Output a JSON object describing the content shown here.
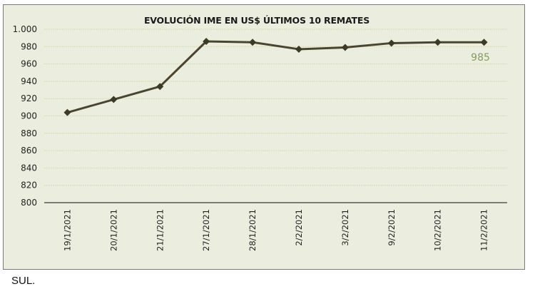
{
  "chart_data": {
    "type": "line",
    "title": "EVOLUCIÓN IME EN US$ ÚLTIMOS 10 REMATES",
    "xlabel": "",
    "ylabel": "",
    "categories": [
      "19/1/2021",
      "20/1/2021",
      "21/1/2021",
      "27/1/2021",
      "28/1/2021",
      "2/2/2021",
      "3/2/2021",
      "9/2/2021",
      "10/2/2021",
      "11/2/2021"
    ],
    "series": [
      {
        "name": "IME US$",
        "values": [
          904,
          919,
          934,
          986,
          985,
          977,
          979,
          984,
          985,
          985
        ]
      }
    ],
    "ylim": [
      800,
      1000
    ],
    "yticks": [
      800,
      820,
      840,
      860,
      880,
      900,
      920,
      940,
      960,
      980,
      1000
    ],
    "ytick_labels": [
      "800",
      "820",
      "840",
      "860",
      "880",
      "900",
      "920",
      "940",
      "960",
      "980",
      "1.000"
    ],
    "grid": true,
    "legend": "none",
    "annotations": [
      {
        "category": "11/2/2021",
        "text": "985"
      }
    ]
  },
  "colors": {
    "line": "#4a4530",
    "marker": "#3d3a26",
    "gridline": "#d6dcb0",
    "background": "#ebeede",
    "annotation": "#8a9a5b",
    "axis": "#595959"
  },
  "footer": {
    "text": "SUL."
  }
}
